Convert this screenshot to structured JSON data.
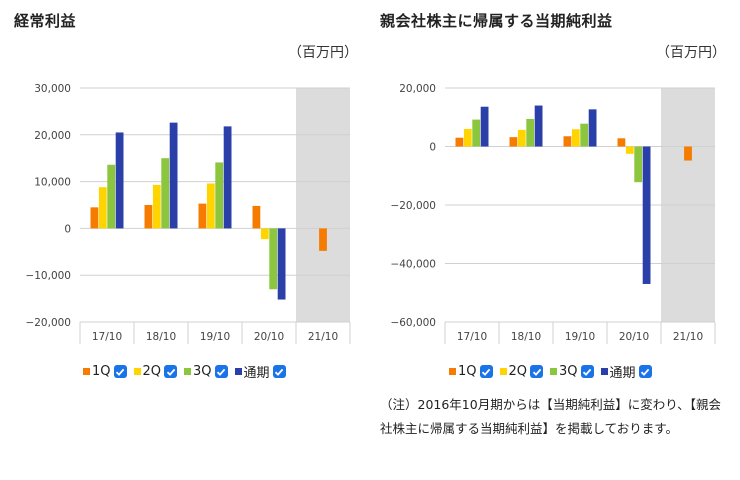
{
  "units_label": "（百万円）",
  "legend": [
    {
      "label": "1Q",
      "color": "#f57c00",
      "checked": true
    },
    {
      "label": "2Q",
      "color": "#ffd400",
      "checked": true
    },
    {
      "label": "3Q",
      "color": "#8cc63f",
      "checked": true
    },
    {
      "label": "通期",
      "color": "#2b3fa8",
      "checked": true
    }
  ],
  "note": "（注）2016年10月期からは【当期純利益】に変わり、【親会社株主に帰属する当期純利益】を掲載しております。",
  "chart_data": [
    {
      "type": "bar",
      "title": "経常利益",
      "categories": [
        "17/10",
        "18/10",
        "19/10",
        "20/10",
        "21/10"
      ],
      "ylim": [
        -20000,
        30000
      ],
      "yticks": [
        30000,
        20000,
        10000,
        0,
        -10000,
        -20000
      ],
      "ytick_labels": [
        "30,000",
        "20,000",
        "10,000",
        "0",
        "−10,000",
        "−20,000"
      ],
      "grid": true,
      "legend_position": "bottom",
      "shaded_category": "21/10",
      "series": [
        {
          "name": "1Q",
          "color": "#f57c00",
          "values": [
            4500,
            5000,
            5300,
            4800,
            -4800
          ]
        },
        {
          "name": "2Q",
          "color": "#ffd400",
          "values": [
            8800,
            9300,
            9600,
            -2300,
            null
          ]
        },
        {
          "name": "3Q",
          "color": "#8cc63f",
          "values": [
            13600,
            15000,
            14100,
            -13000,
            null
          ]
        },
        {
          "name": "通期",
          "color": "#2b3fa8",
          "values": [
            20500,
            22600,
            21800,
            -15200,
            null
          ]
        }
      ]
    },
    {
      "type": "bar",
      "title": "親会社株主に帰属する当期純利益",
      "categories": [
        "17/10",
        "18/10",
        "19/10",
        "20/10",
        "21/10"
      ],
      "ylim": [
        -60000,
        20000
      ],
      "yticks": [
        20000,
        0,
        -20000,
        -40000,
        -60000
      ],
      "ytick_labels": [
        "20,000",
        "0",
        "−20,000",
        "−40,000",
        "−60,000"
      ],
      "grid": true,
      "legend_position": "bottom",
      "shaded_category": "21/10",
      "series": [
        {
          "name": "1Q",
          "color": "#f57c00",
          "values": [
            3000,
            3200,
            3500,
            2800,
            -4800
          ]
        },
        {
          "name": "2Q",
          "color": "#ffd400",
          "values": [
            6000,
            5700,
            5900,
            -2500,
            null
          ]
        },
        {
          "name": "3Q",
          "color": "#8cc63f",
          "values": [
            9200,
            9400,
            7800,
            -12200,
            null
          ]
        },
        {
          "name": "通期",
          "color": "#2b3fa8",
          "values": [
            13600,
            14000,
            12700,
            -47000,
            null
          ]
        }
      ]
    }
  ]
}
